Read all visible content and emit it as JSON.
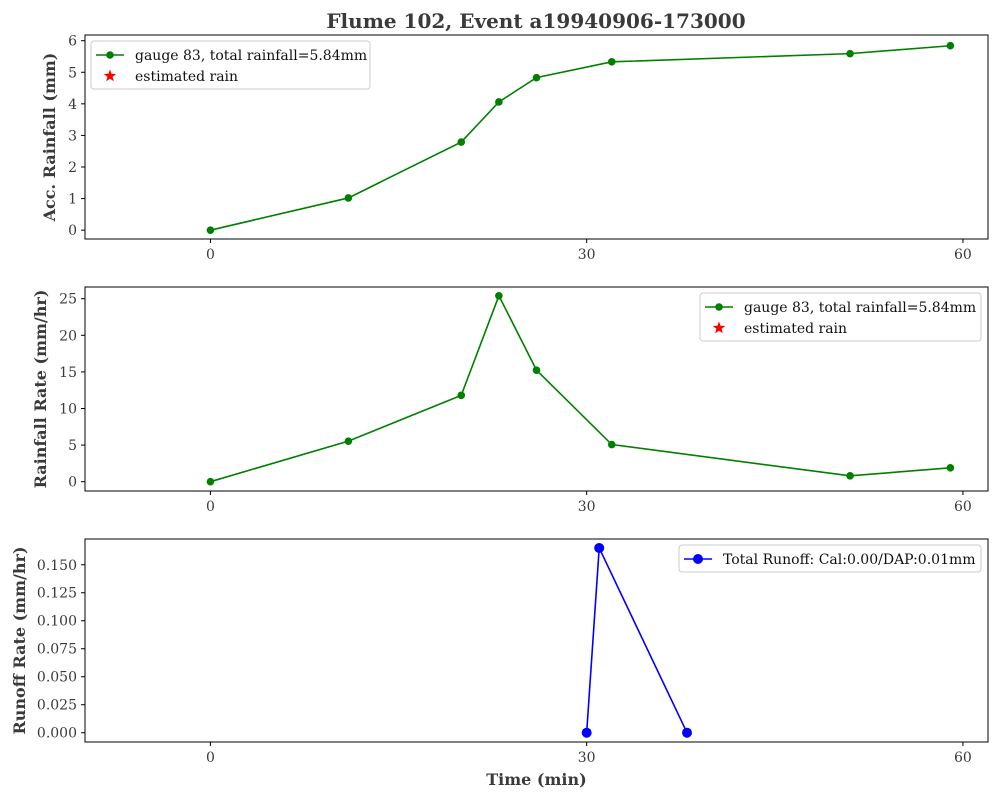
{
  "title": "Flume 102, Event a19940906-173000",
  "colors": {
    "green": "#008000",
    "red": "#ff0000",
    "blue": "#0000ff"
  },
  "chart_data": [
    {
      "type": "line",
      "ylabel": "Acc. Rainfall (mm)",
      "xlim": [
        -10,
        62
      ],
      "ylim": [
        -0.28,
        6.18
      ],
      "xticks": [
        0,
        30,
        60
      ],
      "yticks": [
        0,
        1,
        2,
        3,
        4,
        5,
        6
      ],
      "yticklabels": [
        "0",
        "1",
        "2",
        "3",
        "4",
        "5",
        "6"
      ],
      "legend_position": "top-left",
      "series": [
        {
          "name": "gauge 83, total rainfall=5.84mm",
          "color": "#008000",
          "marker": "circle",
          "x": [
            0,
            11,
            20,
            23,
            26,
            32,
            51,
            59
          ],
          "y": [
            0,
            1.02,
            2.79,
            4.06,
            4.83,
            5.33,
            5.59,
            5.84
          ]
        },
        {
          "name": "estimated rain",
          "color": "#ff0000",
          "marker": "star",
          "x": [],
          "y": []
        }
      ]
    },
    {
      "type": "line",
      "ylabel": "Rainfall Rate (mm/hr)",
      "xlim": [
        -10,
        62
      ],
      "ylim": [
        -1.27,
        26.6
      ],
      "xticks": [
        0,
        30,
        60
      ],
      "yticks": [
        0,
        5,
        10,
        15,
        20,
        25
      ],
      "yticklabels": [
        "0",
        "5",
        "10",
        "15",
        "20",
        "25"
      ],
      "legend_position": "top-right",
      "series": [
        {
          "name": "gauge 83, total rainfall=5.84mm",
          "color": "#008000",
          "marker": "circle",
          "x": [
            0,
            11,
            20,
            23,
            26,
            32,
            51,
            59
          ],
          "y": [
            0,
            5.54,
            11.8,
            25.4,
            15.24,
            5.08,
            0.8,
            1.9
          ]
        },
        {
          "name": "estimated rain",
          "color": "#ff0000",
          "marker": "star",
          "x": [],
          "y": []
        }
      ]
    },
    {
      "type": "line",
      "ylabel": "Runoff Rate (mm/hr)",
      "xlabel": "Time (min)",
      "xlim": [
        -10,
        62
      ],
      "ylim": [
        -0.0083,
        0.173
      ],
      "xticks": [
        0,
        30,
        60
      ],
      "yticks": [
        0,
        0.025,
        0.05,
        0.075,
        0.1,
        0.125,
        0.15
      ],
      "yticklabels": [
        "0.000",
        "0.025",
        "0.050",
        "0.075",
        "0.100",
        "0.125",
        "0.150"
      ],
      "legend_position": "top-right",
      "series": [
        {
          "name": "Total Runoff: Cal:0.00/DAP:0.01mm",
          "color": "#0000ff",
          "marker": "circle-large",
          "x": [
            30,
            31,
            38
          ],
          "y": [
            0,
            0.165,
            0
          ]
        }
      ]
    }
  ]
}
